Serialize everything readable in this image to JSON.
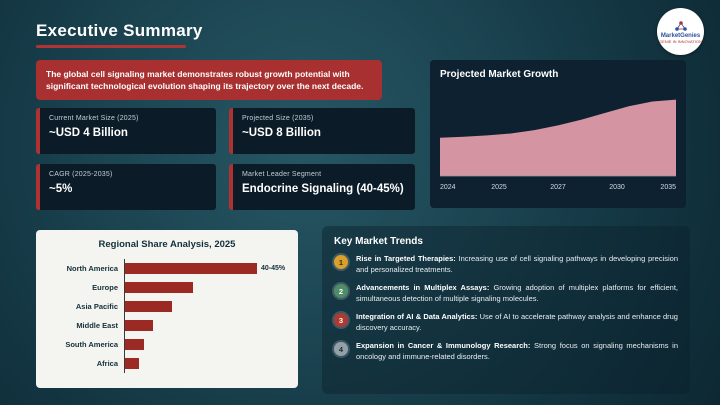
{
  "header": {
    "title": "Executive Summary",
    "logo": {
      "name": "MarketGenies",
      "tagline": "GENIE IN INNOVATION"
    }
  },
  "banner": {
    "text": "The global cell signaling market demonstrates robust growth potential with significant technological evolution shaping its trajectory over the next decade."
  },
  "stats": [
    {
      "label": "Current Market Size (2025)",
      "value": "~USD 4 Billion"
    },
    {
      "label": "Projected Size (2035)",
      "value": "~USD 8 Billion"
    },
    {
      "label": "CAGR (2025-2035)",
      "value": "~5%"
    },
    {
      "label": "Market Leader Segment",
      "value": "Endocrine Signaling (40-45%)"
    }
  ],
  "trends": {
    "title": "Key Market Trends",
    "items": [
      {
        "num": "1",
        "color": "#d9a02b",
        "num_color": "#3a2c07",
        "lead": "Rise in Targeted Therapies:",
        "text": "Increasing use of cell signaling pathways in developing precision and personalized treatments."
      },
      {
        "num": "2",
        "color": "#4e8d66",
        "num_color": "#ffffff",
        "lead": "Advancements in Multiplex Assays:",
        "text": "Growing adoption of multiplex platforms for efficient, simultaneous detection of multiple signaling molecules."
      },
      {
        "num": "3",
        "color": "#ae3a32",
        "num_color": "#ffffff",
        "lead": "Integration of AI & Data Analytics:",
        "text": "Use of AI to accelerate pathway analysis and enhance drug discovery accuracy."
      },
      {
        "num": "4",
        "color": "#93a0a8",
        "num_color": "#1c2b33",
        "lead": "Expansion in Cancer & Immunology Research:",
        "text": "Strong focus on signaling mechanisms in oncology and immune-related disorders."
      }
    ]
  },
  "chart_data": [
    {
      "type": "area",
      "title": "Projected Market Growth",
      "x_ticks": [
        "2024",
        "2025",
        "2027",
        "2030",
        "2035"
      ],
      "values": [
        4.0,
        4.1,
        4.25,
        4.45,
        4.8,
        5.3,
        5.9,
        6.6,
        7.3,
        7.8,
        8.0
      ],
      "unit": "USD Billion",
      "ylim": [
        0,
        9
      ],
      "fill_color": "#d594a1",
      "legend": "none",
      "grid": false
    },
    {
      "type": "bar",
      "title": "Regional Share Analysis, 2025",
      "orientation": "horizontal",
      "categories": [
        "North America",
        "Europe",
        "Asia Pacific",
        "Middle East",
        "South America",
        "Africa"
      ],
      "values": [
        42.5,
        22,
        15,
        9,
        6,
        4.5
      ],
      "unit": "% share",
      "xlim": [
        0,
        45
      ],
      "bar_color": "#9c2a24",
      "annotations": [
        {
          "category": "North America",
          "label": "40-45%"
        }
      ],
      "legend": "none",
      "grid": false
    }
  ]
}
